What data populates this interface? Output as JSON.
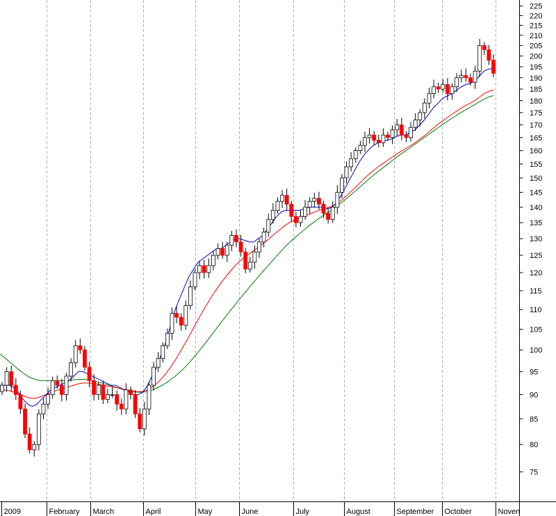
{
  "chart_data": {
    "type": "candlestick",
    "x_tick_labels": [
      "2009",
      "February",
      "March",
      "April",
      "May",
      "June",
      "July",
      "August",
      "September",
      "October",
      "Noven"
    ],
    "y_tick_labels": [
      75,
      80,
      85,
      90,
      95,
      100,
      105,
      110,
      115,
      120,
      125,
      130,
      135,
      140,
      145,
      150,
      155,
      160,
      165,
      170,
      175,
      180,
      185,
      190,
      195,
      200,
      205,
      210,
      215,
      220,
      225
    ],
    "ylim": [
      71,
      226
    ],
    "y_scale": "log",
    "grid": {
      "vertical_dashed": true,
      "horizontal": false
    },
    "colors": {
      "up": "#ffffff",
      "down": "#ff0000",
      "wick": "#000000",
      "ma_short": "#0000cc",
      "ma_mid": "#ff0000",
      "ma_long": "#007700"
    },
    "close_series": [
      92,
      95,
      92,
      90,
      87,
      82,
      79,
      80,
      86,
      88,
      90,
      93,
      92,
      90,
      94,
      97,
      101,
      100,
      96,
      93,
      90,
      92,
      89,
      90,
      90,
      88,
      87,
      91,
      90,
      86,
      83,
      87,
      92,
      96,
      98,
      101,
      104,
      109,
      108,
      106,
      111,
      116,
      120,
      122,
      120,
      122,
      125,
      127,
      125,
      128,
      131,
      129,
      126,
      121,
      123,
      126,
      129,
      132,
      136,
      139,
      142,
      144,
      141,
      137,
      135,
      137,
      140,
      142,
      143,
      141,
      138,
      136,
      140,
      145,
      150,
      154,
      157,
      160,
      162,
      165,
      166,
      164,
      163,
      166,
      165,
      168,
      170,
      166,
      165,
      169,
      172,
      175,
      179,
      183,
      186,
      185,
      187,
      183,
      186,
      190,
      191,
      190,
      188,
      193,
      205,
      203,
      198,
      192
    ],
    "ma_short_series": [
      92,
      92,
      92,
      91.5,
      90.5,
      89,
      88,
      87.5,
      88,
      89,
      90,
      91,
      91.5,
      92,
      92.5,
      93,
      94,
      95,
      95,
      94.5,
      94,
      93.5,
      93,
      92.5,
      92,
      92,
      91.5,
      91,
      90.5,
      90,
      90,
      90.5,
      92,
      94,
      96,
      99,
      102,
      106,
      110,
      113,
      116,
      119,
      121,
      123,
      124,
      125,
      126,
      127,
      127,
      128,
      129,
      130,
      130,
      129.5,
      129,
      129,
      130,
      131,
      133,
      135,
      137,
      138.5,
      139,
      139,
      139,
      139,
      139.5,
      140,
      140,
      140,
      140,
      139.5,
      140,
      141.5,
      144,
      147,
      150,
      153,
      156,
      158.5,
      160.5,
      162,
      163,
      163.5,
      164,
      164.5,
      165.5,
      166,
      166,
      167,
      168,
      170,
      172,
      174.5,
      177,
      179,
      181,
      182,
      183,
      184.5,
      186,
      187,
      187.5,
      188.5,
      191,
      193,
      194,
      194
    ],
    "ma_mid_series": [
      91,
      91,
      90.8,
      90.5,
      90.2,
      89.8,
      89.4,
      89.2,
      89.3,
      89.6,
      90,
      90.4,
      90.8,
      91.1,
      91.4,
      91.7,
      92,
      92.3,
      92.5,
      92.5,
      92.4,
      92.3,
      92.1,
      91.9,
      91.7,
      91.5,
      91.3,
      91.1,
      90.9,
      90.7,
      90.6,
      90.7,
      91,
      91.6,
      92.4,
      93.4,
      94.6,
      96,
      97.6,
      99.4,
      101.3,
      103.3,
      105.4,
      107.5,
      109.6,
      111.6,
      113.6,
      115.5,
      117.2,
      118.9,
      120.5,
      122,
      123.3,
      124.4,
      125.4,
      126.4,
      127.4,
      128.5,
      129.6,
      130.8,
      132,
      133.2,
      134.3,
      135.2,
      135.9,
      136.5,
      137.1,
      137.7,
      138.3,
      138.9,
      139.4,
      139.8,
      140.4,
      141.2,
      142.3,
      143.6,
      145.1,
      146.6,
      148.2,
      149.8,
      151.3,
      152.7,
      154,
      155.2,
      156.4,
      157.5,
      158.7,
      159.8,
      160.8,
      161.9,
      163,
      164.3,
      165.7,
      167.2,
      168.8,
      170.3,
      171.7,
      173,
      174.3,
      175.6,
      176.9,
      178,
      179,
      180.1,
      181.6,
      183,
      184,
      184.6
    ],
    "ma_long_series": [
      99,
      98.2,
      97.3,
      96.4,
      95.5,
      94.7,
      94,
      93.5,
      93.2,
      93,
      93,
      93,
      93,
      93,
      93,
      93.1,
      93.2,
      93.3,
      93.3,
      93.2,
      93,
      92.8,
      92.5,
      92.2,
      91.9,
      91.6,
      91.3,
      91,
      90.8,
      90.6,
      90.5,
      90.5,
      90.7,
      91,
      91.4,
      91.9,
      92.5,
      93.2,
      94,
      94.9,
      95.9,
      97,
      98.2,
      99.5,
      100.9,
      102.3,
      103.8,
      105.3,
      106.8,
      108.3,
      109.8,
      111.3,
      112.8,
      114.3,
      115.8,
      117.3,
      118.8,
      120.3,
      121.8,
      123.3,
      124.8,
      126.3,
      127.8,
      129.1,
      130.4,
      131.6,
      132.8,
      134,
      135.1,
      136.2,
      137.2,
      138.2,
      139.2,
      140.3,
      141.5,
      142.7,
      144,
      145.4,
      146.8,
      148.2,
      149.6,
      151,
      152.3,
      153.6,
      154.9,
      156.2,
      157.5,
      158.8,
      160,
      161.2,
      162.4,
      163.7,
      165,
      166.3,
      167.6,
      168.9,
      170.2,
      171.5,
      172.7,
      173.9,
      175.1,
      176.2,
      177.3,
      178.4,
      179.6,
      180.7,
      181.6,
      182.2
    ]
  }
}
